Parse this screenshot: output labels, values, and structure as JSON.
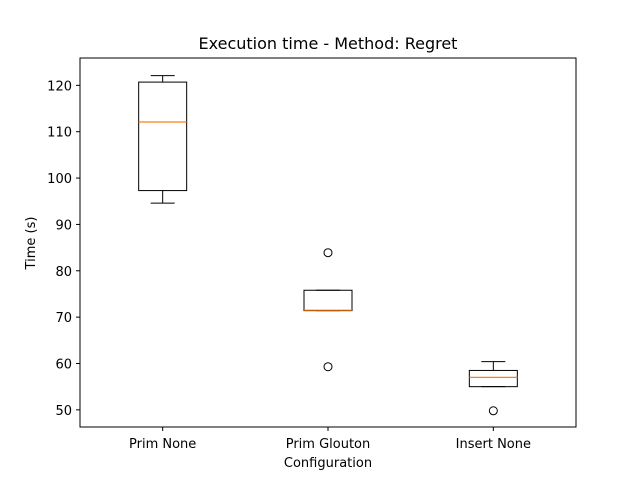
{
  "chart_data": {
    "type": "box",
    "title": "Execution time - Method: Regret",
    "xlabel": "Configuration",
    "ylabel": "Time (s)",
    "ylim": [
      46.3,
      125.9
    ],
    "yticks": [
      50,
      60,
      70,
      80,
      90,
      100,
      110,
      120
    ],
    "grid": false,
    "colors": {
      "box": "#000000",
      "median": "#ff7f0e",
      "flier": "#000000"
    },
    "categories": [
      "Prim None",
      "Prim Glouton",
      "Insert None"
    ],
    "boxes": [
      {
        "label": "Prim None",
        "whislo": 94.6,
        "q1": 97.3,
        "med": 112.1,
        "q3": 120.7,
        "whishi": 122.1,
        "fliers": []
      },
      {
        "label": "Prim Glouton",
        "whislo": 71.4,
        "q1": 71.4,
        "med": 71.5,
        "q3": 75.8,
        "whishi": 75.8,
        "fliers": [
          59.3,
          83.9
        ]
      },
      {
        "label": "Insert None",
        "whislo": 55.0,
        "q1": 55.0,
        "med": 57.0,
        "q3": 58.5,
        "whishi": 60.4,
        "fliers": [
          49.8
        ]
      }
    ]
  }
}
